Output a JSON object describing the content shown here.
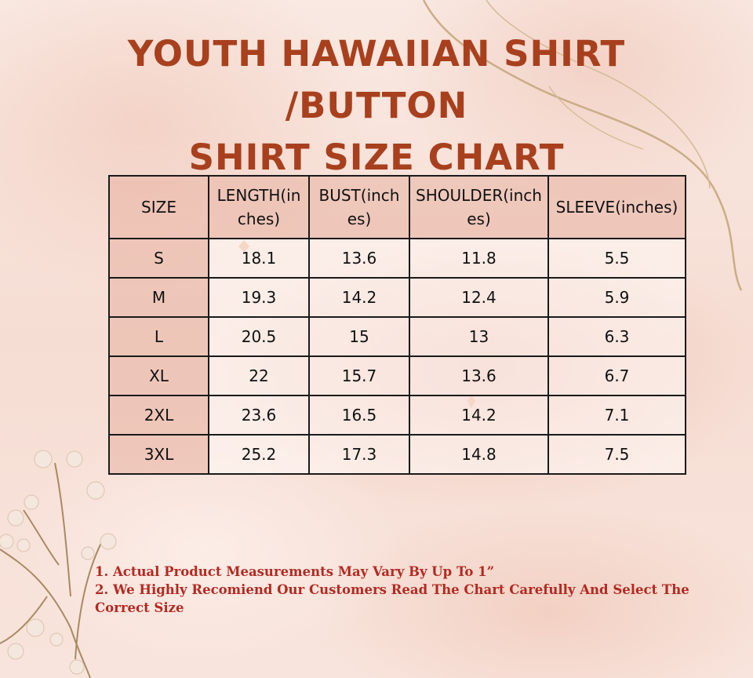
{
  "title": {
    "line1": "YOUTH HAWAIIAN SHIRT /BUTTON",
    "line2": "SHIRT SIZE CHART"
  },
  "table": {
    "headers": [
      "SIZE",
      "LENGTH(inches)",
      "BUST(inches)",
      "SHOULDER(inches)",
      "SLEEVE(inches)"
    ],
    "rows": [
      [
        "S",
        "18.1",
        "13.6",
        "11.8",
        "5.5"
      ],
      [
        "M",
        "19.3",
        "14.2",
        "12.4",
        "5.9"
      ],
      [
        "L",
        "20.5",
        "15",
        "13",
        "6.3"
      ],
      [
        "XL",
        "22",
        "15.7",
        "13.6",
        "6.7"
      ],
      [
        "2XL",
        "23.6",
        "16.5",
        "14.2",
        "7.1"
      ],
      [
        "3XL",
        "25.2",
        "17.3",
        "14.8",
        "7.5"
      ]
    ]
  },
  "notes": [
    "1. Actual Product Measurements May Vary By Up To 1”",
    "2. We Highly Recomiend Our Customers Read The Chart Carefully And Select The Correct Size"
  ],
  "colors": {
    "title": "#a8401e",
    "notes": "#b22a22",
    "header_fill": "#e8b2a2",
    "border": "#1a1a1a"
  }
}
